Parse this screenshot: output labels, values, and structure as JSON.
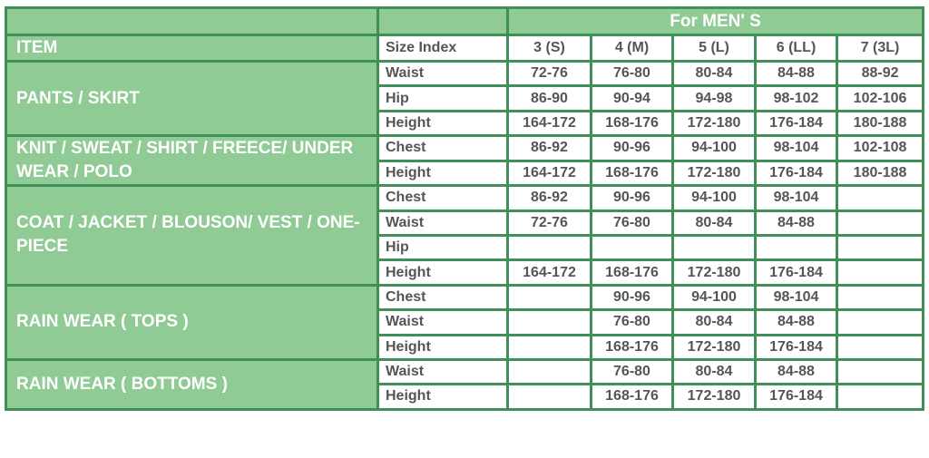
{
  "header": {
    "title": "For MEN' S",
    "item_label": "ITEM",
    "size_index_label": "Size Index"
  },
  "sizes": [
    "3 (S)",
    "4 (M)",
    "5 (L)",
    "6 (LL)",
    "7 (3L)"
  ],
  "colors": {
    "fill": "#90ca95",
    "border": "#3f8f58",
    "text": "#555555"
  },
  "groups": [
    {
      "item": "PANTS / SKIRT",
      "rows": [
        {
          "label": "Waist",
          "values": [
            "72-76",
            "76-80",
            "80-84",
            "84-88",
            "88-92"
          ]
        },
        {
          "label": "Hip",
          "values": [
            "86-90",
            "90-94",
            "94-98",
            "98-102",
            "102-106"
          ]
        },
        {
          "label": "Height",
          "values": [
            "164-172",
            "168-176",
            "172-180",
            "176-184",
            "180-188"
          ]
        }
      ]
    },
    {
      "item": "KNIT / SWEAT / SHIRT / FREECE/ UNDER WEAR / POLO",
      "rows": [
        {
          "label": "Chest",
          "values": [
            "86-92",
            "90-96",
            "94-100",
            "98-104",
            "102-108"
          ]
        },
        {
          "label": "Height",
          "values": [
            "164-172",
            "168-176",
            "172-180",
            "176-184",
            "180-188"
          ]
        }
      ]
    },
    {
      "item": "COAT / JACKET / BLOUSON/ VEST / ONE-PIECE",
      "rows": [
        {
          "label": "Chest",
          "values": [
            "86-92",
            "90-96",
            "94-100",
            "98-104",
            ""
          ]
        },
        {
          "label": "Waist",
          "values": [
            "72-76",
            "76-80",
            "80-84",
            "84-88",
            ""
          ]
        },
        {
          "label": "Hip",
          "values": [
            "",
            "",
            "",
            "",
            ""
          ]
        },
        {
          "label": "Height",
          "values": [
            "164-172",
            "168-176",
            "172-180",
            "176-184",
            ""
          ]
        }
      ]
    },
    {
      "item": "RAIN WEAR ( TOPS )",
      "rows": [
        {
          "label": "Chest",
          "values": [
            "",
            "90-96",
            "94-100",
            "98-104",
            ""
          ]
        },
        {
          "label": "Waist",
          "values": [
            "",
            "76-80",
            "80-84",
            "84-88",
            ""
          ]
        },
        {
          "label": "Height",
          "values": [
            "",
            "168-176",
            "172-180",
            "176-184",
            ""
          ]
        }
      ]
    },
    {
      "item": "RAIN WEAR ( BOTTOMS )",
      "rows": [
        {
          "label": "Waist",
          "values": [
            "",
            "76-80",
            "80-84",
            "84-88",
            ""
          ]
        },
        {
          "label": "Height",
          "values": [
            "",
            "168-176",
            "172-180",
            "176-184",
            ""
          ]
        }
      ]
    }
  ]
}
